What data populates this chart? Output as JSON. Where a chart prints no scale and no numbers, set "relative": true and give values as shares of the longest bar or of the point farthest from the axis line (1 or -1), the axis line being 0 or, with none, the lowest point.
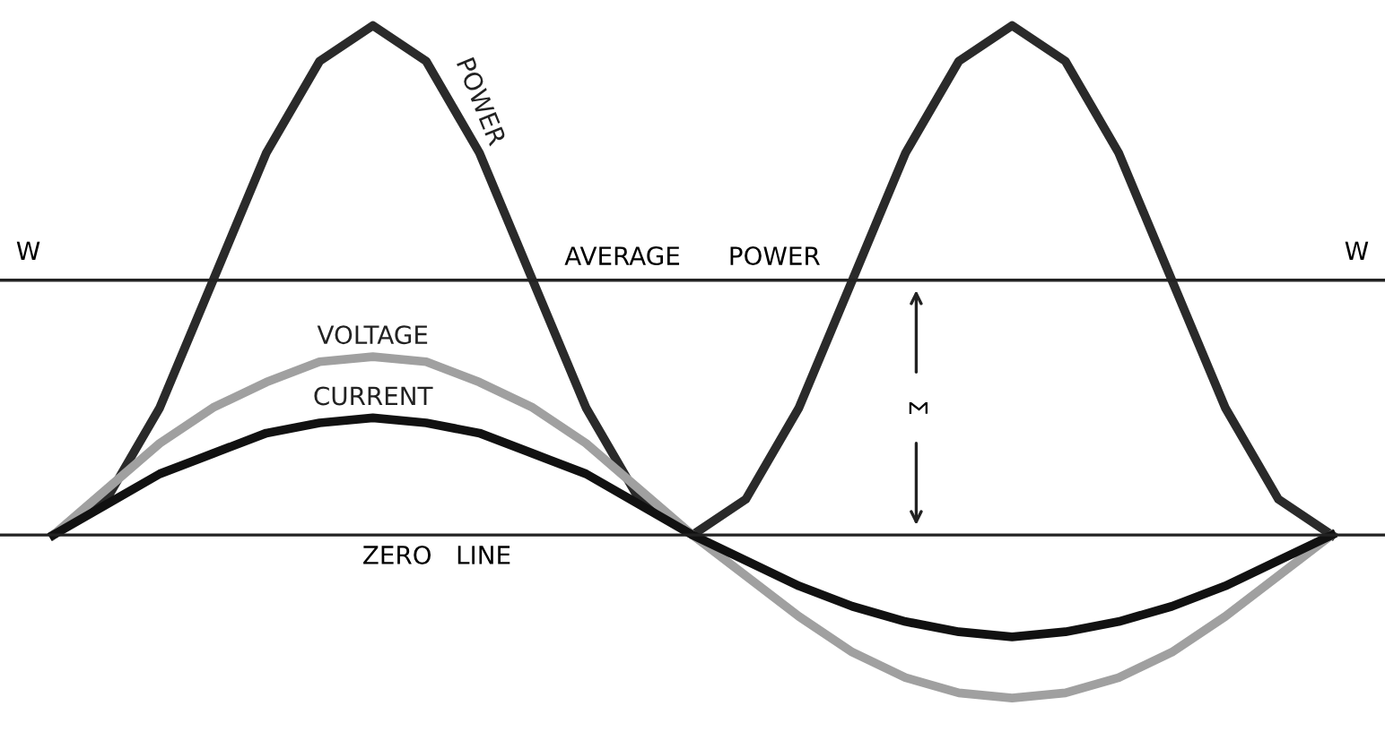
{
  "chart_data": {
    "type": "line",
    "relative": true,
    "categories": [
      null,
      null,
      null,
      null,
      null,
      null,
      null,
      null,
      null,
      null,
      null,
      null,
      null,
      null,
      null,
      null,
      null,
      null,
      null,
      null,
      null,
      null,
      null,
      null,
      null
    ],
    "series": [
      {
        "name": "POWER",
        "color": "#2a2a2a",
        "values": [
          0,
          0.07,
          0.25,
          0.5,
          0.75,
          0.93,
          1,
          0.93,
          0.75,
          0.5,
          0.25,
          0.07,
          0,
          0.07,
          0.25,
          0.5,
          0.75,
          0.93,
          1,
          0.93,
          0.75,
          0.5,
          0.25,
          0.07,
          0
        ]
      },
      {
        "name": "VOLTAGE",
        "color": "#a0a0a0",
        "values": [
          0,
          0.09,
          0.18,
          0.25,
          0.3,
          0.34,
          0.35,
          0.34,
          0.3,
          0.25,
          0.18,
          0.09,
          0,
          -0.08,
          -0.16,
          -0.23,
          -0.28,
          -0.31,
          -0.32,
          -0.31,
          -0.28,
          -0.23,
          -0.16,
          -0.08,
          0
        ]
      },
      {
        "name": "CURRENT",
        "color": "#111111",
        "values": [
          0,
          0.06,
          0.12,
          0.16,
          0.2,
          0.22,
          0.23,
          0.22,
          0.2,
          0.16,
          0.12,
          0.06,
          0,
          -0.05,
          -0.1,
          -0.14,
          -0.17,
          -0.19,
          -0.2,
          -0.19,
          -0.17,
          -0.14,
          -0.1,
          -0.05,
          0
        ]
      }
    ],
    "ref_lines": [
      {
        "axis": "y",
        "value": 0.5,
        "label": "AVERAGE      POWER",
        "color": "#222222"
      },
      {
        "axis": "y",
        "value": 0,
        "label": "ZERO   LINE",
        "color": "#222222"
      }
    ],
    "annotations": [
      "W",
      "W",
      "Σ"
    ],
    "marker": "none",
    "line_style": "solid"
  }
}
